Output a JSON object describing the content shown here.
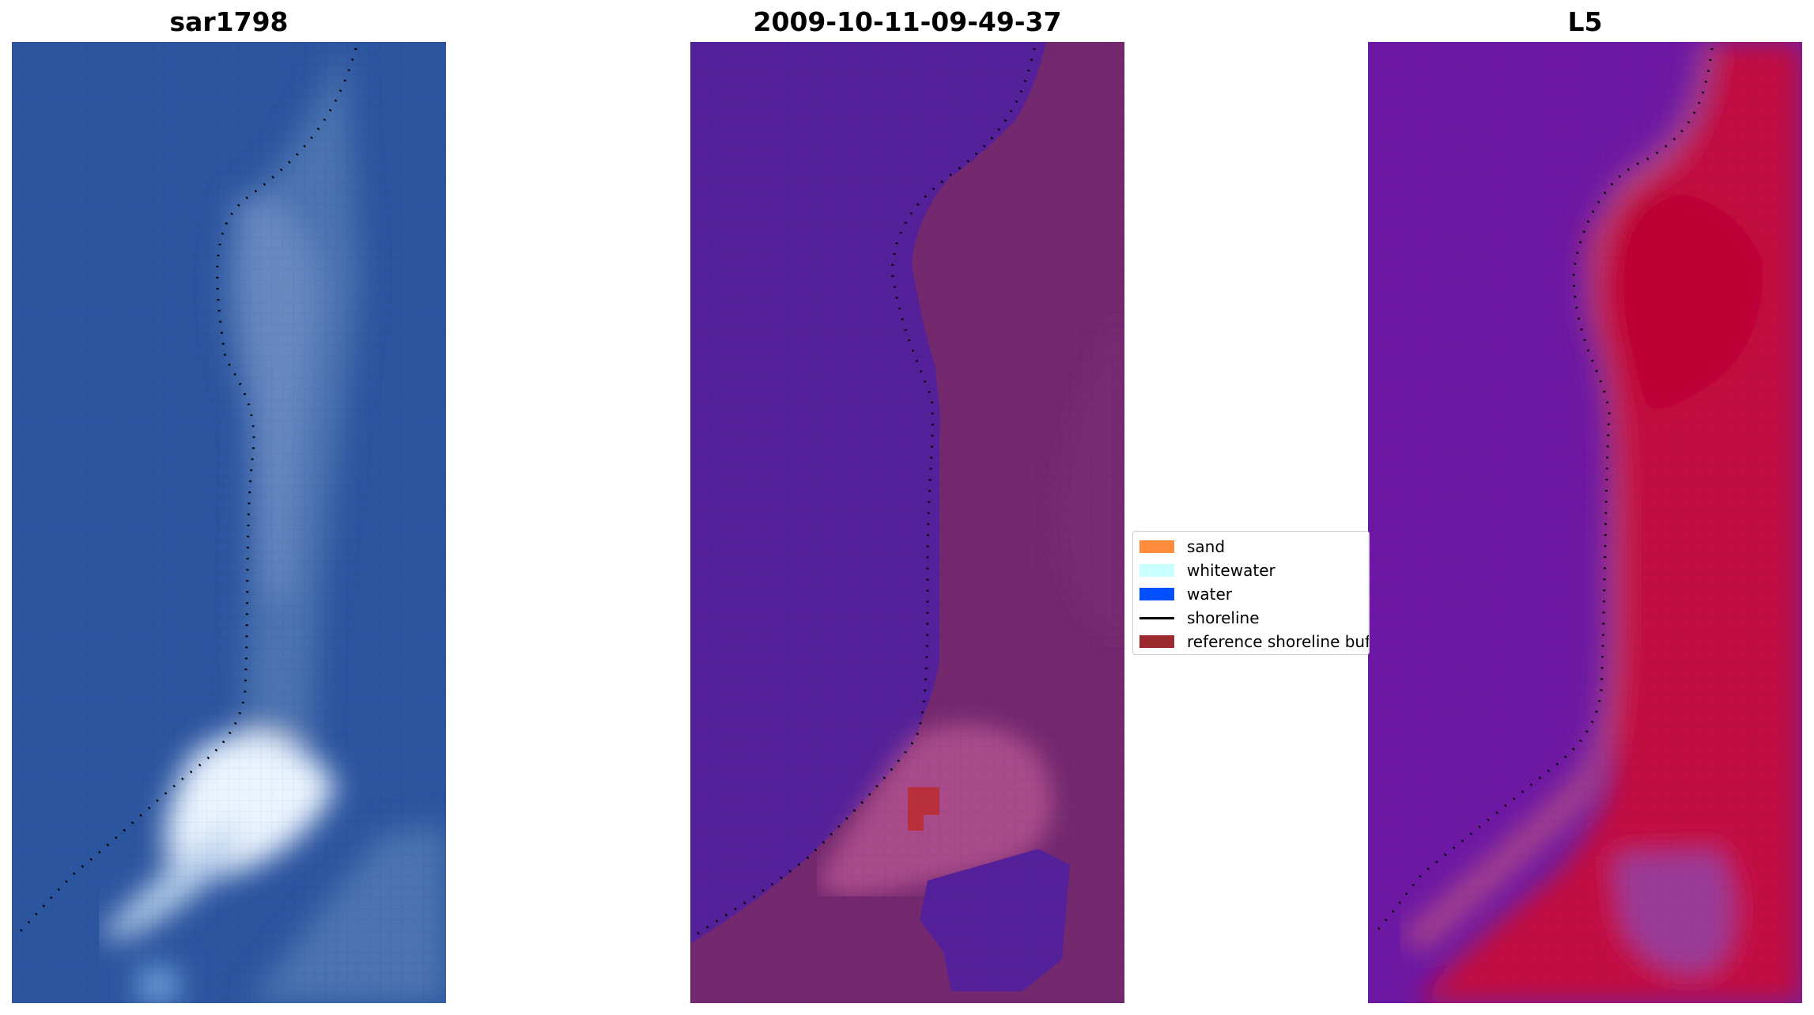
{
  "panels": [
    {
      "title": "sar1798"
    },
    {
      "title": "2009-10-11-09-49-37"
    },
    {
      "title": "L5"
    }
  ],
  "legend": {
    "items": [
      {
        "label": "sand",
        "color": "#ff8c3c",
        "kind": "patch"
      },
      {
        "label": "whitewater",
        "color": "#c8ffff",
        "kind": "patch"
      },
      {
        "label": "water",
        "color": "#0050ff",
        "kind": "patch"
      },
      {
        "label": "shoreline",
        "color": "#000000",
        "kind": "line"
      },
      {
        "label": "reference shoreline buffer",
        "color": "#9b2a2e",
        "kind": "patch"
      }
    ]
  },
  "colors": {
    "sar_water": "#2c52a0",
    "sar_land": "#4a72b0",
    "sar_whitewater": "#f2f8ff",
    "class_water": "#55219a",
    "class_land": "#74296f",
    "class_buffer": "#b8303c",
    "index_low": "#6a14a8",
    "index_high": "#c8083a",
    "shoreline": "#000000"
  }
}
